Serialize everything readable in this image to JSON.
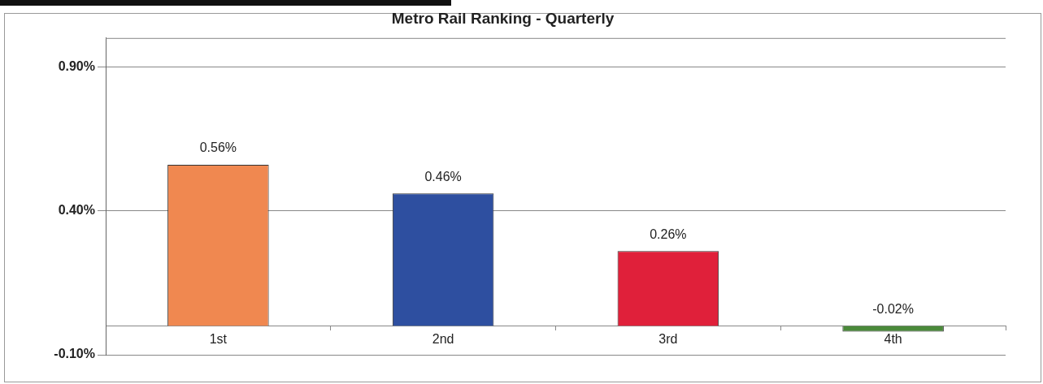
{
  "chart_data": {
    "type": "bar",
    "title": "Metro Rail Ranking - Quarterly",
    "categories": [
      "1st",
      "2nd",
      "3rd",
      "4th"
    ],
    "values": [
      0.56,
      0.46,
      0.26,
      -0.02
    ],
    "colors": [
      "#f08850",
      "#2e4fa0",
      "#e0203a",
      "#4a8a3a"
    ],
    "value_labels": [
      "0.56%",
      "0.46%",
      "0.26%",
      "-0.02%"
    ],
    "ylim": [
      -0.1,
      1.0
    ],
    "yticks": [
      {
        "value": -0.1,
        "label": "-0.10%"
      },
      {
        "value": 0.4,
        "label": "0.40%"
      },
      {
        "value": 0.9,
        "label": "0.90%"
      }
    ],
    "grid": "y",
    "legend": false
  }
}
